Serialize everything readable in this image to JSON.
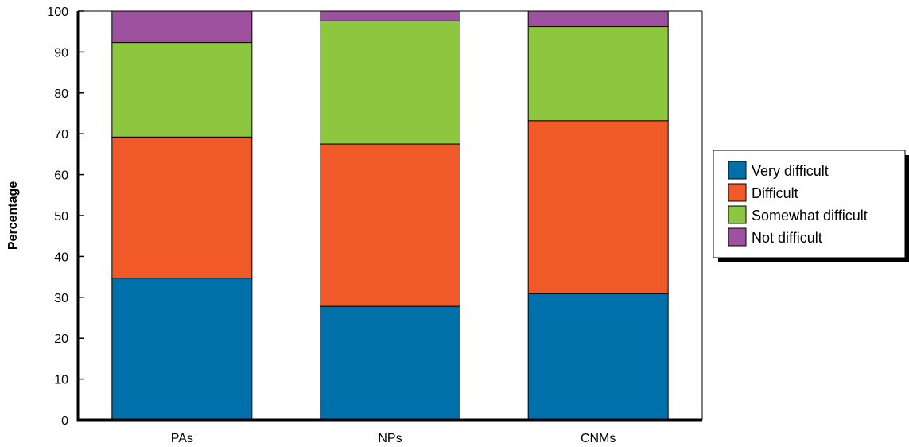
{
  "chart_data": {
    "type": "bar",
    "stacked": true,
    "categories": [
      "PAs",
      "NPs",
      "CNMs"
    ],
    "series": [
      {
        "name": "Very difficult",
        "color": "#0070AA",
        "values": [
          34.7,
          27.8,
          30.9
        ]
      },
      {
        "name": "Difficult",
        "color": "#F05A28",
        "values": [
          34.5,
          39.7,
          42.3
        ]
      },
      {
        "name": "Somewhat difficult",
        "color": "#8DC63F",
        "values": [
          23.1,
          30.1,
          23.0
        ]
      },
      {
        "name": "Not difficult",
        "color": "#9E519F",
        "values": [
          7.7,
          2.4,
          3.8
        ]
      }
    ],
    "ylabel": "Percentage",
    "xlabel": "",
    "ylim": [
      0,
      100
    ],
    "yticks": [
      0,
      10,
      20,
      30,
      40,
      50,
      60,
      70,
      80,
      90,
      100
    ],
    "grid": false,
    "legend_position": "right"
  }
}
